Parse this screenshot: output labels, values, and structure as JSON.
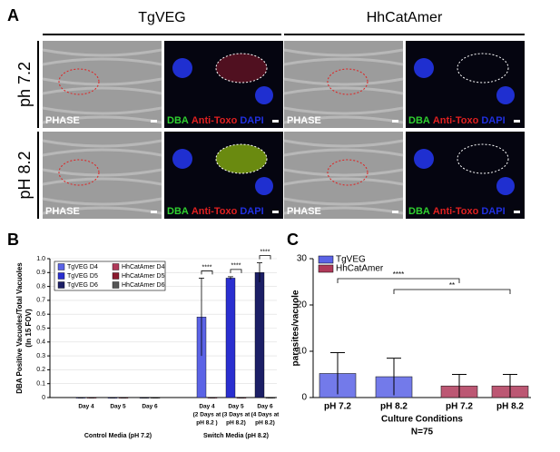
{
  "panel_a": {
    "label": "A",
    "columns": [
      "TgVEG",
      "HhCatAmer"
    ],
    "rows": [
      "ph 7.2",
      "pH 8.2"
    ],
    "phase_label": "PHASE",
    "stain_labels": [
      "DBA",
      "Anti-Toxo",
      "DAPI"
    ]
  },
  "chart_data": [
    {
      "type": "bar",
      "label": "B",
      "ylabel": [
        "DBA Positive Vacuoles/Total Vacuoles",
        "(In 15 FOV)"
      ],
      "categories": [
        [
          "Day 4"
        ],
        [
          "Day 5"
        ],
        [
          "Day 6"
        ],
        [
          "Day 4",
          "(2 Days at",
          "pH 8.2 )"
        ],
        [
          "Day 5",
          "(3 Days at",
          "pH 8.2)"
        ],
        [
          "Day 6",
          "(4 Days at",
          "pH 8.2)"
        ]
      ],
      "groups": [
        "Control Media (pH 7.2)",
        "Switch Media (pH 8.2)"
      ],
      "series": [
        {
          "name": "TgVEG D4",
          "color": "#5b63e6",
          "values": [
            0,
            null,
            null,
            0.58,
            null,
            null
          ],
          "errors": [
            0,
            null,
            null,
            0.28,
            null,
            null
          ]
        },
        {
          "name": "TgVEG D5",
          "color": "#2a2fd0",
          "values": [
            null,
            0,
            null,
            null,
            0.86,
            null
          ],
          "errors": [
            null,
            0,
            null,
            null,
            0.01,
            null
          ]
        },
        {
          "name": "TgVEG D6",
          "color": "#1c1f66",
          "values": [
            null,
            null,
            0,
            null,
            null,
            0.9
          ],
          "errors": [
            null,
            null,
            0,
            null,
            null,
            0.07
          ]
        },
        {
          "name": "HhCatAmer D4",
          "color": "#b03a5a",
          "values": [
            0,
            null,
            null,
            0,
            null,
            null
          ],
          "errors": [
            0,
            null,
            null,
            0,
            null,
            null
          ]
        },
        {
          "name": "HhCatAmer D5",
          "color": "#8a1a2e",
          "values": [
            null,
            0,
            null,
            null,
            0,
            null
          ],
          "errors": [
            null,
            0,
            null,
            null,
            0,
            null
          ]
        },
        {
          "name": "HhCatAmer D6",
          "color": "#555555",
          "values": [
            null,
            null,
            0,
            null,
            null,
            0
          ],
          "errors": [
            null,
            null,
            0,
            null,
            null,
            0
          ]
        }
      ],
      "ylim": [
        0,
        1
      ],
      "yticks": [
        0,
        0.1,
        0.2,
        0.3,
        0.4,
        0.5,
        0.6,
        0.7,
        0.8,
        0.9,
        {
          "value": 1,
          "label": "1.0"
        }
      ],
      "annotations": [
        {
          "text": "****",
          "category": 3
        },
        {
          "text": "****",
          "category": 4
        },
        {
          "text": "****",
          "category": 5
        }
      ]
    },
    {
      "type": "bar",
      "label": "C",
      "ylabel": "parasites/vacuole",
      "xlabel": "Culture Conditions",
      "note": "N=75",
      "categories": [
        "pH 7.2",
        "pH 8.2",
        "pH 7.2",
        "pH 8.2"
      ],
      "series": [
        {
          "name": "TgVEG",
          "color": "#5b63e6",
          "values": [
            5.2,
            4.5,
            null,
            null
          ],
          "errors": [
            4.5,
            4,
            null,
            null
          ]
        },
        {
          "name": "HhCatAmer",
          "color": "#b03a5a",
          "values": [
            null,
            null,
            2.5,
            2.5
          ],
          "errors": [
            null,
            null,
            2.5,
            2.5
          ]
        }
      ],
      "ylim": [
        0,
        30
      ],
      "yticks": [
        0,
        10,
        20,
        30
      ],
      "annotations": [
        {
          "text": "****",
          "from": 0,
          "to": 2
        },
        {
          "text": "**",
          "from": 1,
          "to": 3
        }
      ]
    }
  ]
}
